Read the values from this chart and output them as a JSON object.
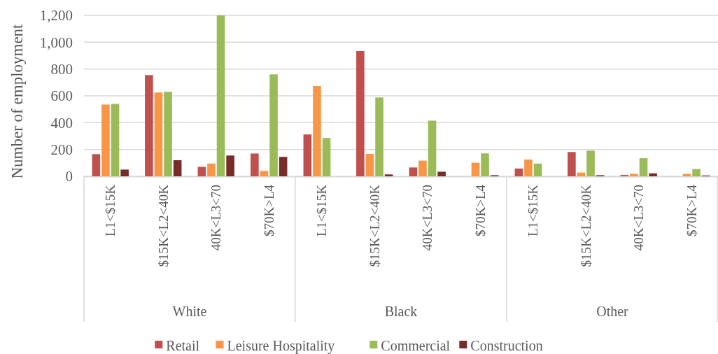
{
  "chart_data": {
    "type": "bar",
    "ylabel": "Number of employment",
    "categories": [
      "L1<$15K",
      "$15K<L2<40K",
      "40K<L3<70",
      "$70K>L4",
      "L1<$15K",
      "$15K<L2<40K",
      "40K<L3<70",
      "$70K>L4",
      "L1<$15K",
      "$15K<L2<40K",
      "40K<L3<70",
      "$70K>L4"
    ],
    "series": [
      {
        "name": "Retail",
        "color": "#c0504d",
        "values": [
          165,
          755,
          70,
          170,
          312,
          934,
          66,
          0,
          58,
          181,
          10,
          0
        ]
      },
      {
        "name": "Leisure Hospitality",
        "color": "#f79646",
        "values": [
          535,
          625,
          95,
          40,
          673,
          167,
          117,
          101,
          125,
          28,
          18,
          18
        ]
      },
      {
        "name": "Commercial",
        "color": "#9bbb59",
        "values": [
          540,
          630,
          1200,
          760,
          286,
          588,
          415,
          171,
          95,
          191,
          135,
          54
        ]
      },
      {
        "name": "Construction",
        "color": "#772c2a",
        "values": [
          50,
          120,
          155,
          145,
          0,
          14,
          34,
          8,
          0,
          8,
          22,
          6
        ]
      }
    ],
    "annotations": [
      "White",
      "Black",
      "Other"
    ],
    "ylim": [
      0,
      1200
    ],
    "yticks": [
      {
        "value": 0,
        "label": "0"
      },
      {
        "value": 200,
        "label": "200"
      },
      {
        "value": 400,
        "label": "400"
      },
      {
        "value": 600,
        "label": "600"
      },
      {
        "value": 800,
        "label": "800"
      },
      {
        "value": 1000,
        "label": "1,000"
      },
      {
        "value": 1200,
        "label": "1,200"
      }
    ],
    "grid": "y",
    "legend": "bottom"
  }
}
